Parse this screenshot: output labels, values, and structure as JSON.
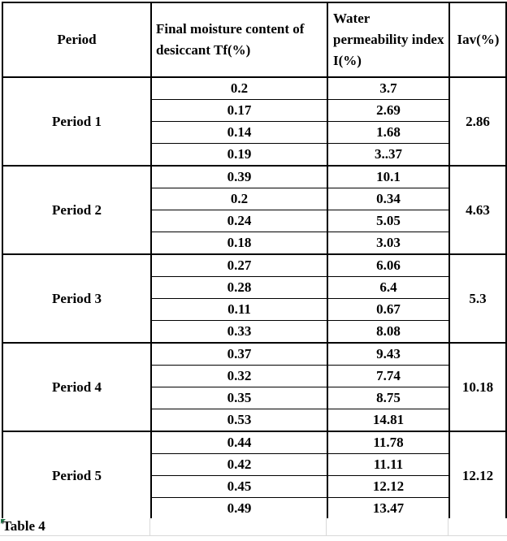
{
  "table": {
    "caption": "Table 4",
    "headers": [
      "Period",
      "Final moisture content of desiccant Tf(%)",
      "Water permeability index I(%)",
      "Iav(%)"
    ],
    "periods": [
      {
        "label": "Period 1",
        "tf": [
          "0.2",
          "0.17",
          "0.14",
          "0.19"
        ],
        "i": [
          "3.7",
          "2.69",
          "1.68",
          "3..37"
        ],
        "iav": "2.86"
      },
      {
        "label": "Period 2",
        "tf": [
          "0.39",
          "0.2",
          "0.24",
          "0.18"
        ],
        "i": [
          "10.1",
          "0.34",
          "5.05",
          "3.03"
        ],
        "iav": "4.63"
      },
      {
        "label": "Period 3",
        "tf": [
          "0.27",
          "0.28",
          "0.11",
          "0.33"
        ],
        "i": [
          "6.06",
          "6.4",
          "0.67",
          "8.08"
        ],
        "iav": "5.3"
      },
      {
        "label": "Period 4",
        "tf": [
          "0.37",
          "0.32",
          "0.35",
          "0.53"
        ],
        "i": [
          "9.43",
          "7.74",
          "8.75",
          "14.81"
        ],
        "iav": "10.18"
      },
      {
        "label": "Period 5",
        "tf": [
          "0.44",
          "0.42",
          "0.45",
          "0.49"
        ],
        "i": [
          "11.78",
          "11.11",
          "12.12",
          "13.47"
        ],
        "iav": "12.12"
      }
    ]
  },
  "colors": {
    "border": "#000000",
    "gridline_light": "#d9d9d9",
    "cell_marker_green": "#1e7145",
    "background": "#ffffff"
  }
}
